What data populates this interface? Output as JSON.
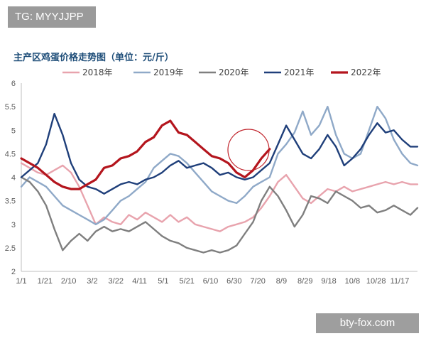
{
  "overlay_tag": "TG: MYYJJPP",
  "watermark": "bty-fox.com",
  "chart_data": {
    "type": "line",
    "title": "主产区鸡蛋价格走势图（单位：元/斤）",
    "xlabel": "",
    "ylabel": "",
    "ylim": [
      2,
      6
    ],
    "yticks": [
      2,
      2.5,
      3,
      3.5,
      4,
      4.5,
      5,
      5.5,
      6
    ],
    "xticks": [
      "1/1",
      "1/21",
      "2/10",
      "3/2",
      "3/22",
      "4/11",
      "5/1",
      "5/21",
      "6/10",
      "6/30",
      "7/20",
      "8/9",
      "8/29",
      "9/18",
      "10/8",
      "10/28",
      "11/17"
    ],
    "x_day_range": [
      0,
      335
    ],
    "grid": false,
    "legend_position": "top",
    "series": [
      {
        "name": "2018年",
        "color": "#e8a3ad",
        "points": [
          [
            0,
            4.3
          ],
          [
            7,
            4.2
          ],
          [
            14,
            4.1
          ],
          [
            21,
            4.05
          ],
          [
            28,
            4.15
          ],
          [
            35,
            4.25
          ],
          [
            42,
            4.1
          ],
          [
            49,
            3.8
          ],
          [
            56,
            3.4
          ],
          [
            63,
            3.0
          ],
          [
            70,
            3.15
          ],
          [
            77,
            3.05
          ],
          [
            84,
            3.0
          ],
          [
            91,
            3.2
          ],
          [
            98,
            3.1
          ],
          [
            105,
            3.25
          ],
          [
            112,
            3.15
          ],
          [
            119,
            3.05
          ],
          [
            126,
            3.2
          ],
          [
            133,
            3.05
          ],
          [
            140,
            3.15
          ],
          [
            147,
            3.0
          ],
          [
            154,
            2.95
          ],
          [
            161,
            2.9
          ],
          [
            168,
            2.85
          ],
          [
            175,
            2.95
          ],
          [
            182,
            3.0
          ],
          [
            189,
            3.05
          ],
          [
            196,
            3.15
          ],
          [
            203,
            3.35
          ],
          [
            210,
            3.6
          ],
          [
            217,
            3.9
          ],
          [
            224,
            4.05
          ],
          [
            231,
            3.8
          ],
          [
            238,
            3.55
          ],
          [
            245,
            3.45
          ],
          [
            252,
            3.6
          ],
          [
            259,
            3.75
          ],
          [
            266,
            3.7
          ],
          [
            273,
            3.8
          ],
          [
            280,
            3.7
          ],
          [
            287,
            3.75
          ],
          [
            294,
            3.8
          ],
          [
            301,
            3.85
          ],
          [
            308,
            3.9
          ],
          [
            315,
            3.85
          ],
          [
            322,
            3.9
          ],
          [
            329,
            3.85
          ],
          [
            335,
            3.85
          ]
        ]
      },
      {
        "name": "2019年",
        "color": "#8fa9c8",
        "points": [
          [
            0,
            3.8
          ],
          [
            7,
            4.0
          ],
          [
            14,
            3.9
          ],
          [
            21,
            3.8
          ],
          [
            28,
            3.6
          ],
          [
            35,
            3.4
          ],
          [
            42,
            3.3
          ],
          [
            49,
            3.2
          ],
          [
            56,
            3.1
          ],
          [
            63,
            3.0
          ],
          [
            70,
            3.1
          ],
          [
            77,
            3.3
          ],
          [
            84,
            3.5
          ],
          [
            91,
            3.6
          ],
          [
            98,
            3.75
          ],
          [
            105,
            3.9
          ],
          [
            112,
            4.2
          ],
          [
            119,
            4.35
          ],
          [
            126,
            4.5
          ],
          [
            133,
            4.45
          ],
          [
            140,
            4.3
          ],
          [
            147,
            4.1
          ],
          [
            154,
            3.9
          ],
          [
            161,
            3.7
          ],
          [
            168,
            3.6
          ],
          [
            175,
            3.5
          ],
          [
            182,
            3.45
          ],
          [
            189,
            3.6
          ],
          [
            196,
            3.8
          ],
          [
            203,
            3.9
          ],
          [
            210,
            4.0
          ],
          [
            217,
            4.5
          ],
          [
            224,
            4.7
          ],
          [
            231,
            4.95
          ],
          [
            238,
            5.4
          ],
          [
            245,
            4.9
          ],
          [
            252,
            5.1
          ],
          [
            259,
            5.5
          ],
          [
            266,
            4.9
          ],
          [
            273,
            4.5
          ],
          [
            280,
            4.4
          ],
          [
            287,
            4.5
          ],
          [
            294,
            5.0
          ],
          [
            301,
            5.5
          ],
          [
            308,
            5.25
          ],
          [
            315,
            4.8
          ],
          [
            322,
            4.5
          ],
          [
            329,
            4.3
          ],
          [
            335,
            4.25
          ]
        ]
      },
      {
        "name": "2020年",
        "color": "#7f7f7f",
        "points": [
          [
            0,
            4.0
          ],
          [
            7,
            3.9
          ],
          [
            14,
            3.7
          ],
          [
            21,
            3.4
          ],
          [
            28,
            2.9
          ],
          [
            35,
            2.45
          ],
          [
            42,
            2.65
          ],
          [
            49,
            2.8
          ],
          [
            56,
            2.65
          ],
          [
            63,
            2.85
          ],
          [
            70,
            2.95
          ],
          [
            77,
            2.85
          ],
          [
            84,
            2.9
          ],
          [
            91,
            2.85
          ],
          [
            98,
            2.95
          ],
          [
            105,
            3.05
          ],
          [
            112,
            2.9
          ],
          [
            119,
            2.75
          ],
          [
            126,
            2.65
          ],
          [
            133,
            2.6
          ],
          [
            140,
            2.5
          ],
          [
            147,
            2.45
          ],
          [
            154,
            2.4
          ],
          [
            161,
            2.45
          ],
          [
            168,
            2.4
          ],
          [
            175,
            2.45
          ],
          [
            182,
            2.55
          ],
          [
            189,
            2.8
          ],
          [
            196,
            3.05
          ],
          [
            203,
            3.5
          ],
          [
            210,
            3.8
          ],
          [
            217,
            3.6
          ],
          [
            224,
            3.3
          ],
          [
            231,
            2.95
          ],
          [
            238,
            3.2
          ],
          [
            245,
            3.6
          ],
          [
            252,
            3.55
          ],
          [
            259,
            3.45
          ],
          [
            266,
            3.7
          ],
          [
            273,
            3.6
          ],
          [
            280,
            3.5
          ],
          [
            287,
            3.35
          ],
          [
            294,
            3.4
          ],
          [
            301,
            3.25
          ],
          [
            308,
            3.3
          ],
          [
            315,
            3.4
          ],
          [
            322,
            3.3
          ],
          [
            329,
            3.2
          ],
          [
            335,
            3.35
          ]
        ]
      },
      {
        "name": "2021年",
        "color": "#1f3f7a",
        "points": [
          [
            0,
            4.0
          ],
          [
            7,
            4.15
          ],
          [
            14,
            4.3
          ],
          [
            21,
            4.7
          ],
          [
            28,
            5.35
          ],
          [
            35,
            4.9
          ],
          [
            42,
            4.3
          ],
          [
            49,
            3.95
          ],
          [
            56,
            3.8
          ],
          [
            63,
            3.75
          ],
          [
            70,
            3.65
          ],
          [
            77,
            3.75
          ],
          [
            84,
            3.85
          ],
          [
            91,
            3.9
          ],
          [
            98,
            3.85
          ],
          [
            105,
            3.95
          ],
          [
            112,
            4.0
          ],
          [
            119,
            4.1
          ],
          [
            126,
            4.25
          ],
          [
            133,
            4.35
          ],
          [
            140,
            4.2
          ],
          [
            147,
            4.25
          ],
          [
            154,
            4.3
          ],
          [
            161,
            4.2
          ],
          [
            168,
            4.05
          ],
          [
            175,
            4.1
          ],
          [
            182,
            4.0
          ],
          [
            189,
            3.95
          ],
          [
            196,
            4.0
          ],
          [
            203,
            4.15
          ],
          [
            210,
            4.3
          ],
          [
            217,
            4.7
          ],
          [
            224,
            5.1
          ],
          [
            231,
            4.8
          ],
          [
            238,
            4.5
          ],
          [
            245,
            4.4
          ],
          [
            252,
            4.6
          ],
          [
            259,
            4.9
          ],
          [
            266,
            4.65
          ],
          [
            273,
            4.25
          ],
          [
            280,
            4.4
          ],
          [
            287,
            4.6
          ],
          [
            294,
            4.9
          ],
          [
            301,
            5.15
          ],
          [
            308,
            4.95
          ],
          [
            315,
            5.0
          ],
          [
            322,
            4.8
          ],
          [
            329,
            4.65
          ],
          [
            335,
            4.65
          ]
        ]
      },
      {
        "name": "2022年",
        "color": "#b4151d",
        "points": [
          [
            0,
            4.4
          ],
          [
            7,
            4.3
          ],
          [
            14,
            4.2
          ],
          [
            21,
            4.05
          ],
          [
            28,
            3.9
          ],
          [
            35,
            3.8
          ],
          [
            42,
            3.75
          ],
          [
            49,
            3.75
          ],
          [
            56,
            3.85
          ],
          [
            63,
            3.95
          ],
          [
            70,
            4.2
          ],
          [
            77,
            4.25
          ],
          [
            84,
            4.4
          ],
          [
            91,
            4.45
          ],
          [
            98,
            4.55
          ],
          [
            105,
            4.75
          ],
          [
            112,
            4.85
          ],
          [
            119,
            5.1
          ],
          [
            126,
            5.2
          ],
          [
            133,
            4.95
          ],
          [
            140,
            4.9
          ],
          [
            147,
            4.75
          ],
          [
            154,
            4.6
          ],
          [
            161,
            4.45
          ],
          [
            168,
            4.4
          ],
          [
            175,
            4.3
          ],
          [
            182,
            4.1
          ],
          [
            189,
            4.0
          ],
          [
            196,
            4.15
          ],
          [
            203,
            4.4
          ],
          [
            210,
            4.6
          ]
        ]
      }
    ]
  }
}
